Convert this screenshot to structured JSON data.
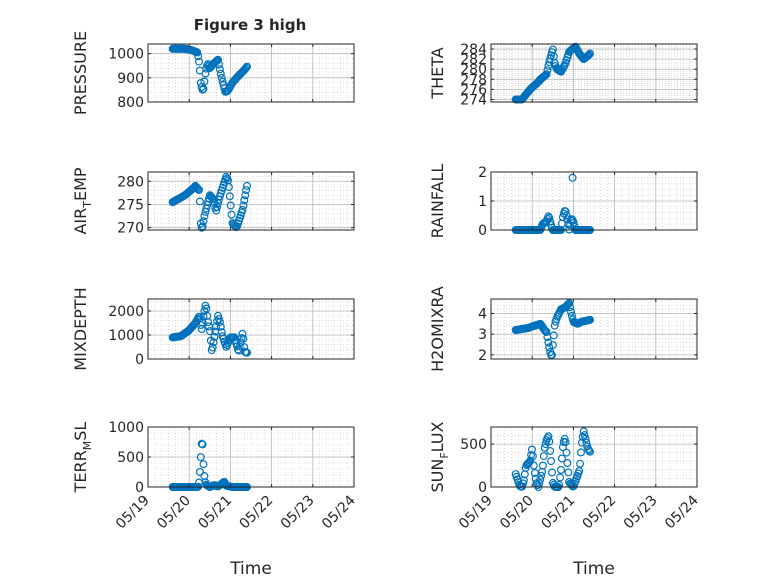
{
  "figure": {
    "title": "Figure 3 high",
    "xlabel": "Time"
  },
  "colors": {
    "marker": "#0072BD",
    "axis": "#262626",
    "grid": "#c8c8c8"
  },
  "x_axis": {
    "range": [
      "05/19",
      "05/24"
    ],
    "ticks": [
      "05/19",
      "05/20",
      "05/21",
      "05/22",
      "05/23",
      "05/24"
    ]
  },
  "chart_data": [
    {
      "type": "scatter",
      "ylabel": "PRESSURE",
      "ylim": [
        800,
        1040
      ],
      "yticks": [
        800,
        900,
        1000
      ],
      "grid": true,
      "profile": [
        [
          0,
          1020
        ],
        [
          0.3,
          1020
        ],
        [
          0.45,
          1015
        ],
        [
          0.6,
          1005
        ],
        [
          0.65,
          955
        ],
        [
          0.68,
          880
        ],
        [
          0.72,
          850
        ],
        [
          0.75,
          855
        ],
        [
          0.8,
          930
        ],
        [
          0.85,
          960
        ],
        [
          0.9,
          940
        ],
        [
          0.95,
          950
        ],
        [
          1.0,
          960
        ],
        [
          1.1,
          975
        ],
        [
          1.15,
          930
        ],
        [
          1.2,
          890
        ],
        [
          1.28,
          840
        ],
        [
          1.35,
          850
        ],
        [
          1.45,
          880
        ],
        [
          1.55,
          900
        ],
        [
          1.75,
          935
        ],
        [
          1.82,
          950
        ]
      ]
    },
    {
      "type": "scatter",
      "ylabel": "THETA",
      "ylim": [
        273.5,
        285
      ],
      "yticks": [
        274,
        276,
        278,
        280,
        282,
        284
      ],
      "grid": true,
      "profile": [
        [
          0,
          274
        ],
        [
          0.15,
          274
        ],
        [
          0.35,
          276
        ],
        [
          0.55,
          277.5
        ],
        [
          0.6,
          278
        ],
        [
          0.75,
          279
        ],
        [
          0.8,
          281
        ],
        [
          0.9,
          284
        ],
        [
          0.95,
          281
        ],
        [
          1.0,
          280
        ],
        [
          1.1,
          279.5
        ],
        [
          1.2,
          281
        ],
        [
          1.3,
          283.5
        ],
        [
          1.45,
          284.5
        ],
        [
          1.55,
          283
        ],
        [
          1.65,
          282
        ],
        [
          1.8,
          283
        ],
        [
          1.82,
          283.5
        ]
      ]
    },
    {
      "type": "scatter",
      "ylabel": "AIR_TEMP",
      "ylim": [
        269.5,
        282
      ],
      "yticks": [
        270,
        275,
        280
      ],
      "grid": true,
      "profile": [
        [
          0,
          275.5
        ],
        [
          0.1,
          276
        ],
        [
          0.3,
          277
        ],
        [
          0.5,
          278.5
        ],
        [
          0.55,
          279
        ],
        [
          0.6,
          278.5
        ],
        [
          0.65,
          278
        ],
        [
          0.68,
          271
        ],
        [
          0.7,
          270
        ],
        [
          0.72,
          270
        ],
        [
          0.78,
          273
        ],
        [
          0.9,
          277
        ],
        [
          1.0,
          276
        ],
        [
          1.05,
          273.5
        ],
        [
          1.15,
          277
        ],
        [
          1.3,
          281
        ],
        [
          1.35,
          280
        ],
        [
          1.45,
          271
        ],
        [
          1.55,
          270
        ],
        [
          1.7,
          274
        ],
        [
          1.8,
          279
        ]
      ]
    },
    {
      "type": "scatter",
      "ylabel": "RAINFALL",
      "ylim": [
        0,
        2
      ],
      "yticks": [
        0,
        1,
        2
      ],
      "grid": true,
      "profile": [
        [
          0,
          0
        ],
        [
          0.6,
          0
        ],
        [
          0.65,
          0.2
        ],
        [
          0.75,
          0.3
        ],
        [
          0.8,
          0.5
        ],
        [
          0.85,
          0.2
        ],
        [
          0.9,
          0
        ],
        [
          1.1,
          0
        ],
        [
          1.15,
          0.5
        ],
        [
          1.2,
          0.7
        ],
        [
          1.25,
          0.4
        ],
        [
          1.3,
          0
        ],
        [
          1.35,
          0.4
        ],
        [
          1.4,
          0.3
        ],
        [
          1.45,
          0
        ],
        [
          1.8,
          0
        ]
      ],
      "outlier": [
        1.38,
        1.8
      ]
    },
    {
      "type": "scatter",
      "ylabel": "MIXDEPTH",
      "ylim": [
        0,
        2500
      ],
      "yticks": [
        0,
        1000,
        2000
      ],
      "grid": true,
      "profile": [
        [
          0,
          900
        ],
        [
          0.2,
          950
        ],
        [
          0.4,
          1200
        ],
        [
          0.55,
          1500
        ],
        [
          0.65,
          1800
        ],
        [
          0.7,
          1200
        ],
        [
          0.75,
          1800
        ],
        [
          0.8,
          2300
        ],
        [
          0.85,
          1600
        ],
        [
          0.9,
          1200
        ],
        [
          0.95,
          300
        ],
        [
          1.0,
          800
        ],
        [
          1.1,
          1800
        ],
        [
          1.15,
          1500
        ],
        [
          1.2,
          1000
        ],
        [
          1.3,
          500
        ],
        [
          1.4,
          900
        ],
        [
          1.5,
          900
        ],
        [
          1.55,
          600
        ],
        [
          1.6,
          300
        ],
        [
          1.7,
          1100
        ],
        [
          1.75,
          300
        ],
        [
          1.82,
          250
        ]
      ]
    },
    {
      "type": "scatter",
      "ylabel": "H2OMIXRA",
      "ylim": [
        1.8,
        4.7
      ],
      "yticks": [
        2,
        3,
        4
      ],
      "grid": true,
      "profile": [
        [
          0,
          3.2
        ],
        [
          0.3,
          3.3
        ],
        [
          0.6,
          3.5
        ],
        [
          0.7,
          3.2
        ],
        [
          0.75,
          3.1
        ],
        [
          0.8,
          2.5
        ],
        [
          0.85,
          2.0
        ],
        [
          0.88,
          2.0
        ],
        [
          0.95,
          3.5
        ],
        [
          1.0,
          3.8
        ],
        [
          1.05,
          4.0
        ],
        [
          1.1,
          4.2
        ],
        [
          1.2,
          4.3
        ],
        [
          1.3,
          4.5
        ],
        [
          1.35,
          4.0
        ],
        [
          1.4,
          3.6
        ],
        [
          1.5,
          3.5
        ],
        [
          1.6,
          3.6
        ],
        [
          1.82,
          3.7
        ]
      ]
    },
    {
      "type": "scatter",
      "ylabel": "TERR_MSL",
      "ylim": [
        0,
        1000
      ],
      "yticks": [
        0,
        500,
        1000
      ],
      "grid": true,
      "profile": [
        [
          0,
          0
        ],
        [
          0.6,
          0
        ],
        [
          0.63,
          10
        ],
        [
          0.66,
          250
        ],
        [
          0.7,
          700
        ],
        [
          0.72,
          800
        ],
        [
          0.75,
          350
        ],
        [
          0.78,
          100
        ],
        [
          0.82,
          30
        ],
        [
          0.9,
          0
        ],
        [
          1.0,
          30
        ],
        [
          1.1,
          10
        ],
        [
          1.2,
          60
        ],
        [
          1.25,
          90
        ],
        [
          1.3,
          20
        ],
        [
          1.45,
          0
        ],
        [
          1.82,
          0
        ]
      ]
    },
    {
      "type": "scatter",
      "ylabel": "SUN_FLUX",
      "ylim": [
        0,
        700
      ],
      "yticks": [
        0,
        500
      ],
      "grid": true,
      "profile": [
        [
          0,
          150
        ],
        [
          0.1,
          10
        ],
        [
          0.15,
          0
        ],
        [
          0.2,
          80
        ],
        [
          0.25,
          250
        ],
        [
          0.35,
          300
        ],
        [
          0.4,
          450
        ],
        [
          0.45,
          200
        ],
        [
          0.5,
          50
        ],
        [
          0.55,
          0
        ],
        [
          0.65,
          200
        ],
        [
          0.7,
          450
        ],
        [
          0.75,
          550
        ],
        [
          0.8,
          600
        ],
        [
          0.85,
          350
        ],
        [
          0.9,
          50
        ],
        [
          0.95,
          0
        ],
        [
          1.05,
          0
        ],
        [
          1.1,
          200
        ],
        [
          1.15,
          500
        ],
        [
          1.2,
          580
        ],
        [
          1.25,
          300
        ],
        [
          1.3,
          50
        ],
        [
          1.4,
          0
        ],
        [
          1.55,
          200
        ],
        [
          1.6,
          500
        ],
        [
          1.65,
          650
        ],
        [
          1.7,
          550
        ],
        [
          1.75,
          450
        ],
        [
          1.82,
          400
        ]
      ]
    }
  ]
}
